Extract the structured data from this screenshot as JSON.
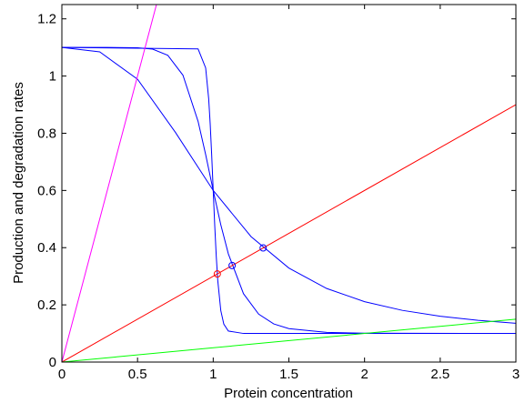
{
  "chart_data": {
    "type": "line",
    "xlabel": "Protein concentration",
    "ylabel": "Production and degradation rates",
    "xlim": [
      0,
      3
    ],
    "ylim": [
      0,
      1.25
    ],
    "xticks": [
      0,
      0.5,
      1,
      1.5,
      2,
      2.5,
      3
    ],
    "yticks": [
      0,
      0.2,
      0.4,
      0.6,
      0.8,
      1,
      1.2
    ],
    "grid": false,
    "series": [
      {
        "color": "#0000ff",
        "mode": "line",
        "x": [
          0,
          0.25,
          0.5,
          0.75,
          1,
          1.25,
          1.5,
          1.75,
          2,
          2.25,
          2.5,
          2.75,
          3
        ],
        "values": [
          1.1,
          1.0846,
          0.9889,
          0.8033,
          0.6,
          0.4386,
          0.3286,
          0.2572,
          0.2111,
          0.1807,
          0.1602,
          0.1459,
          0.1357
        ]
      },
      {
        "color": "#0000ff",
        "mode": "line",
        "x": [
          0,
          0.3,
          0.5,
          0.6,
          0.7,
          0.8,
          0.9,
          0.95,
          1,
          1.05,
          1.1,
          1.2,
          1.3,
          1.4,
          1.5,
          1.75,
          2,
          3
        ],
        "values": [
          1.1,
          1.1,
          1.099,
          1.094,
          1.0726,
          1.003,
          0.8415,
          0.7255,
          0.6,
          0.4804,
          0.3783,
          0.239,
          0.1676,
          0.1334,
          0.117,
          0.1037,
          0.101,
          0.1
        ]
      },
      {
        "color": "#0000ff",
        "mode": "line",
        "x": [
          0,
          0.9,
          0.95,
          0.97,
          0.98,
          0.99,
          1,
          1.01,
          1.02,
          1.03,
          1.05,
          1.07,
          1.1,
          1.2,
          3
        ],
        "values": [
          1.1,
          1.0949,
          1.0286,
          0.9211,
          0.8332,
          0.723,
          0.6,
          0.478,
          0.3709,
          0.2857,
          0.1802,
          0.1328,
          0.1084,
          0.1,
          0.1
        ]
      },
      {
        "color": "#ff0000",
        "mode": "line",
        "x": [
          0,
          3
        ],
        "values": [
          0,
          0.9
        ]
      },
      {
        "color": "#ff00ff",
        "mode": "line",
        "x": [
          0,
          0.625
        ],
        "values": [
          0,
          1.25
        ]
      },
      {
        "color": "#00ff00",
        "mode": "line",
        "x": [
          0,
          3
        ],
        "values": [
          0,
          0.15
        ]
      },
      {
        "color": "#ff0000",
        "mode": "markers",
        "x": [
          1.027
        ],
        "values": [
          0.308
        ]
      },
      {
        "color": "#0000ff",
        "mode": "markers",
        "x": [
          1.125
        ],
        "values": [
          0.3375
        ]
      },
      {
        "color": "#0000ff",
        "mode": "markers",
        "x": [
          1.33
        ],
        "values": [
          0.399
        ]
      }
    ]
  }
}
